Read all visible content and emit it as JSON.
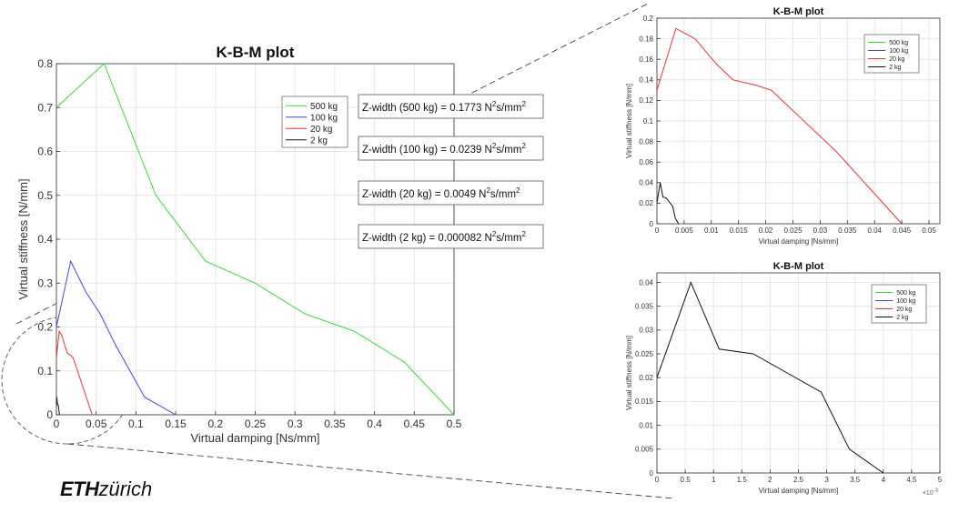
{
  "colors": {
    "s500": "#33dd33",
    "s100": "#4444ee",
    "s20": "#ee3333",
    "s2": "#111111",
    "grid": "#e6e6e6",
    "axis": "#333333"
  },
  "icons": {
    "magnifier": "dashed-circle-zoom"
  },
  "logo": {
    "eth": "ETH",
    "zurich": "zürich"
  },
  "chart_data": [
    {
      "id": "main",
      "type": "line",
      "title": "K-B-M plot",
      "xlabel": "Virtual damping [Ns/mm]",
      "ylabel": "Virtual stiffness [N/mm]",
      "xlim": [
        0,
        0.5
      ],
      "ylim": [
        0,
        0.8
      ],
      "xticks": [
        0,
        0.05,
        0.1,
        0.15,
        0.2,
        0.25,
        0.3,
        0.35,
        0.4,
        0.45,
        0.5
      ],
      "yticks": [
        0,
        0.1,
        0.2,
        0.3,
        0.4,
        0.5,
        0.6,
        0.7,
        0.8
      ],
      "xticklabels": [
        "0",
        "0.05",
        "0.1",
        "0.15",
        "0.2",
        "0.25",
        "0.3",
        "0.35",
        "0.4",
        "0.45",
        "0.5"
      ],
      "yticklabels": [
        "0",
        "0.1",
        "0.2",
        "0.3",
        "0.4",
        "0.5",
        "0.6",
        "0.7",
        "0.8"
      ],
      "grid": true,
      "legend": "top-right",
      "series": [
        {
          "name": "500 kg",
          "color": "#33dd33",
          "x": [
            0,
            0.06,
            0.125,
            0.1875,
            0.25,
            0.3125,
            0.375,
            0.4375,
            0.5
          ],
          "y": [
            0.7,
            0.8,
            0.5,
            0.35,
            0.3,
            0.23,
            0.19,
            0.12,
            0
          ]
        },
        {
          "name": "100 kg",
          "color": "#4444ee",
          "x": [
            0,
            0.018,
            0.037,
            0.055,
            0.074,
            0.111,
            0.15
          ],
          "y": [
            0.2,
            0.35,
            0.28,
            0.23,
            0.16,
            0.04,
            0
          ]
        },
        {
          "name": "20 kg",
          "color": "#ee3333",
          "x": [
            0,
            0.0035,
            0.007,
            0.011,
            0.014,
            0.018,
            0.021,
            0.045
          ],
          "y": [
            0.13,
            0.19,
            0.18,
            0.155,
            0.14,
            0.135,
            0.13,
            0
          ]
        },
        {
          "name": "2 kg",
          "color": "#111111",
          "x": [
            0,
            0.0006,
            0.0011,
            0.0017,
            0.0023,
            0.0029,
            0.0034,
            0.004
          ],
          "y": [
            0.02,
            0.04,
            0.026,
            0.025,
            0.021,
            0.017,
            0.005,
            0
          ]
        }
      ],
      "annotations": [
        {
          "text": "Z-width (500 kg) = 0.1773 N",
          "sup": "2",
          "tail": "s/mm",
          "sup2": "2"
        },
        {
          "text": "Z-width (100 kg) = 0.0239 N",
          "sup": "2",
          "tail": "s/mm",
          "sup2": "2"
        },
        {
          "text": "Z-width (20 kg) = 0.0049 N",
          "sup": "2",
          "tail": "s/mm",
          "sup2": "2"
        },
        {
          "text": "Z-width (2 kg) = 0.000082 N",
          "sup": "2",
          "tail": "s/mm",
          "sup2": "2"
        }
      ]
    },
    {
      "id": "zoom1",
      "type": "line",
      "title": "K-B-M plot",
      "xlabel": "Virtual damping [Ns/mm]",
      "ylabel": "Virtual stiffness [N/mm]",
      "xlim": [
        0,
        0.052
      ],
      "ylim": [
        0,
        0.2
      ],
      "xticks": [
        0,
        0.005,
        0.01,
        0.015,
        0.02,
        0.025,
        0.03,
        0.035,
        0.04,
        0.045,
        0.05
      ],
      "yticks": [
        0,
        0.02,
        0.04,
        0.06,
        0.08,
        0.1,
        0.12,
        0.14,
        0.16,
        0.18,
        0.2
      ],
      "xticklabels": [
        "0",
        "0.005",
        "0.01",
        "0.015",
        "0.02",
        "0.025",
        "0.03",
        "0.035",
        "0.04",
        "0.045",
        "0.05"
      ],
      "yticklabels": [
        "0",
        "0.02",
        "0.04",
        "0.06",
        "0.08",
        "0.1",
        "0.12",
        "0.14",
        "0.16",
        "0.18",
        "0.2"
      ],
      "grid": true,
      "legend": "top-right",
      "series": [
        {
          "name": "500 kg",
          "color": "#33dd33",
          "x": [],
          "y": []
        },
        {
          "name": "100 kg",
          "color": "#4444ee",
          "x": [],
          "y": []
        },
        {
          "name": "20 kg",
          "color": "#ee3333",
          "x": [
            0,
            0.0035,
            0.007,
            0.011,
            0.014,
            0.018,
            0.021,
            0.033,
            0.045
          ],
          "y": [
            0.13,
            0.19,
            0.18,
            0.155,
            0.14,
            0.135,
            0.13,
            0.07,
            0
          ]
        },
        {
          "name": "2 kg",
          "color": "#111111",
          "x": [
            0,
            0.0006,
            0.0011,
            0.0017,
            0.0023,
            0.0029,
            0.0034,
            0.004
          ],
          "y": [
            0.02,
            0.04,
            0.026,
            0.025,
            0.021,
            0.017,
            0.005,
            0
          ]
        }
      ]
    },
    {
      "id": "zoom2",
      "type": "line",
      "title": "K-B-M plot",
      "xlabel": "Virtual damping [Ns/mm]",
      "ylabel": "Virtual stiffness [N/mm]",
      "xlim": [
        0,
        0.005
      ],
      "ylim": [
        0,
        0.042
      ],
      "exponent_label": "×10",
      "exponent_sup": "-3",
      "xticks": [
        0,
        0.0005,
        0.001,
        0.0015,
        0.002,
        0.0025,
        0.003,
        0.0035,
        0.004,
        0.0045,
        0.005
      ],
      "yticks": [
        0,
        0.005,
        0.01,
        0.015,
        0.02,
        0.025,
        0.03,
        0.035,
        0.04
      ],
      "xticklabels": [
        "0",
        "0.5",
        "1",
        "1.5",
        "2",
        "2.5",
        "3",
        "3.5",
        "4",
        "4.5",
        "5"
      ],
      "yticklabels": [
        "0",
        "0.005",
        "0.01",
        "0.015",
        "0.02",
        "0.025",
        "0.03",
        "0.035",
        "0.04"
      ],
      "grid": true,
      "legend": "top-right",
      "series": [
        {
          "name": "500 kg",
          "color": "#33dd33",
          "x": [],
          "y": []
        },
        {
          "name": "100 kg",
          "color": "#4444ee",
          "x": [],
          "y": []
        },
        {
          "name": "20 kg",
          "color": "#ee3333",
          "x": [],
          "y": []
        },
        {
          "name": "2 kg",
          "color": "#111111",
          "x": [
            0,
            0.0006,
            0.0011,
            0.0017,
            0.0023,
            0.0029,
            0.0034,
            0.004
          ],
          "y": [
            0.02,
            0.04,
            0.026,
            0.025,
            0.021,
            0.017,
            0.005,
            0
          ]
        }
      ]
    }
  ]
}
